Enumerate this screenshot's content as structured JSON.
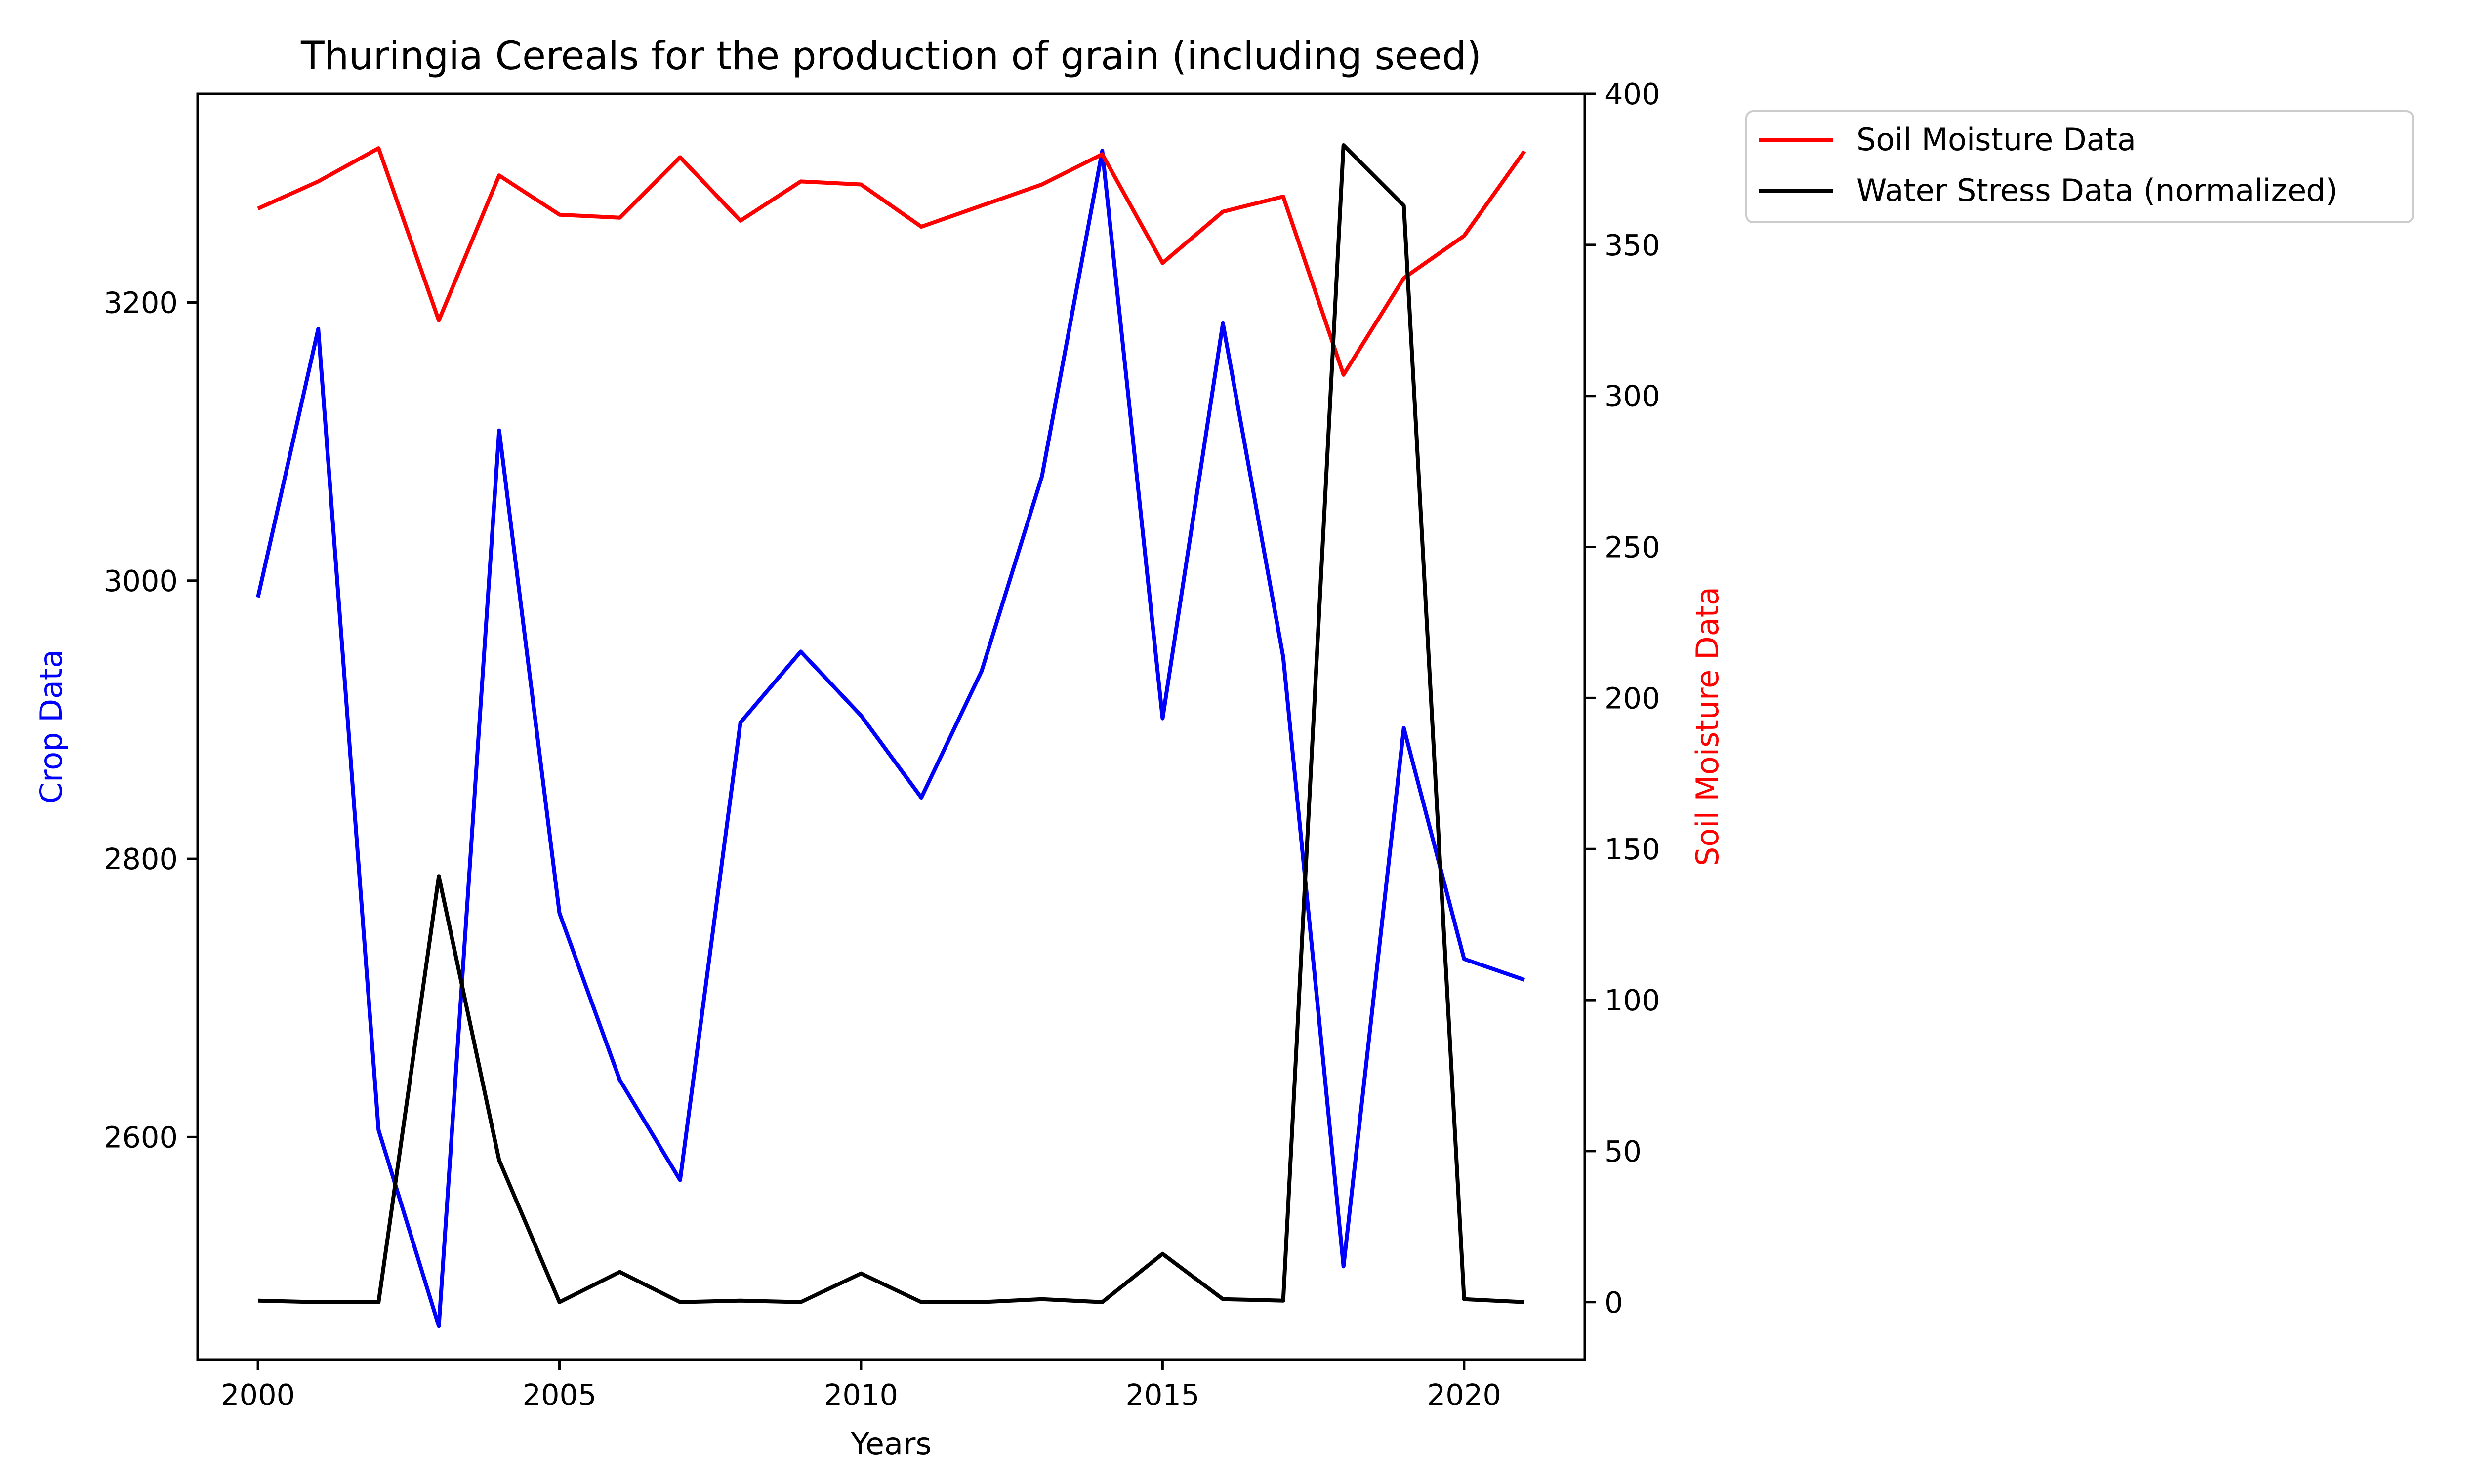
{
  "chart_data": {
    "type": "line",
    "title": "Thuringia Cereals for the production of grain (including seed)",
    "xlabel": "Years",
    "ylabel_left": "Crop Data",
    "ylabel_right": "Soil Moisture Data",
    "xlim": [
      1999,
      2022
    ],
    "ylim_left": [
      2440,
      3350
    ],
    "ylim_right": [
      -19,
      400
    ],
    "x_ticks": [
      2000,
      2005,
      2010,
      2015,
      2020
    ],
    "y_ticks_left": [
      2600,
      2800,
      3000,
      3200
    ],
    "y_ticks_right": [
      0,
      50,
      100,
      150,
      200,
      250,
      300,
      350,
      400
    ],
    "grid": false,
    "legend_position": "outside-top-right",
    "x": [
      2000,
      2001,
      2002,
      2003,
      2004,
      2005,
      2006,
      2007,
      2008,
      2009,
      2010,
      2011,
      2012,
      2013,
      2014,
      2015,
      2016,
      2017,
      2018,
      2019,
      2020,
      2021
    ],
    "series": [
      {
        "key": "crop",
        "axis": "left",
        "color": "#0000ff",
        "values": [
          2988,
          3181,
          2605,
          2464,
          3108,
          2761,
          2641,
          2569,
          2898,
          2949,
          2903,
          2844,
          2935,
          3075,
          3309,
          2901,
          3185,
          2945,
          2507,
          2894,
          2728,
          2713
        ]
      },
      {
        "key": "soil",
        "axis": "right",
        "name": "Soil Moisture Data",
        "color": "#ff0000",
        "values": [
          362,
          371,
          382,
          325,
          373,
          360,
          359,
          379,
          358,
          371,
          370,
          356,
          363,
          370,
          380,
          344,
          361,
          366,
          307,
          339,
          353,
          381
        ]
      },
      {
        "key": "stress",
        "axis": "right",
        "name": "Water Stress Data (normalized)",
        "color": "#000000",
        "values": [
          0.5,
          0,
          0,
          141,
          47,
          0,
          10,
          0,
          0.5,
          0,
          9.5,
          0,
          0,
          1,
          0,
          16,
          1,
          0.5,
          383,
          363,
          1,
          0
        ]
      }
    ]
  }
}
